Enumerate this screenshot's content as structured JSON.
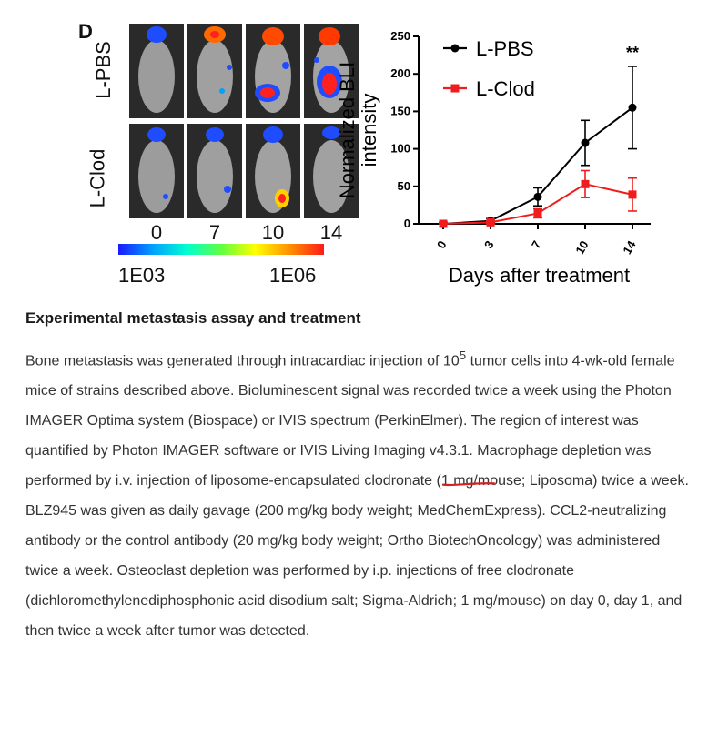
{
  "figure": {
    "panel_letter": "D",
    "row_labels": [
      "L-PBS",
      "L-Clod"
    ],
    "day_labels": [
      "0",
      "7",
      "10",
      "14"
    ],
    "colorbar": {
      "min_label": "1E03",
      "max_label": "1E06"
    }
  },
  "chart_data": {
    "type": "line",
    "x": [
      "0",
      "3",
      "7",
      "10",
      "14"
    ],
    "xlabel": "Days after treatment",
    "ylabel": "Normalized BLI intensity",
    "ylim": [
      0,
      250
    ],
    "yticks": [
      "0",
      "50",
      "100",
      "150",
      "200",
      "250"
    ],
    "grid": false,
    "legend_position": "top-left",
    "series": [
      {
        "name": "L-PBS",
        "color": "#000000",
        "marker": "circle",
        "values": [
          0,
          4,
          36,
          108,
          155
        ],
        "errors": [
          2,
          3,
          12,
          30,
          55
        ]
      },
      {
        "name": "L-Clod",
        "color": "#ee1c1c",
        "marker": "square",
        "values": [
          0,
          2,
          14,
          53,
          39
        ],
        "errors": [
          2,
          2,
          6,
          18,
          22
        ]
      }
    ],
    "annotation": {
      "text": "**",
      "x": "14"
    }
  },
  "text": {
    "heading": "Experimental metastasis assay and treatment",
    "p1": "Bone metastasis was generated through intracardiac injection of 10",
    "sup": "5",
    "p2": " tumor cells into 4-wk-old female mice of strains described above. Bioluminescent signal was recorded twice a week using the Photon IMAGER Optima system (Biospace) or IVIS spectrum (PerkinElmer). The region of interest was quantified by Photon IMAGER software or IVIS Living Imaging v4.3.1. Macrophage depletion was performed by i.v. injection of liposome-encapsulated clodronate (",
    "underlined": "1 mg/mouse; Liposoma",
    "p3": ") twice a week. BLZ945 was given as daily gavage (200 mg/kg body weight; MedChemExpress). CCL2-neutralizing antibody or the control antibody (20 mg/kg body weight; Ortho BiotechOncology) was administered twice a week. Osteoclast depletion was performed by i.p. injections of free clodronate (dichloromethylenediphosphonic acid disodium salt; Sigma-Aldrich; 1 mg/mouse) on day 0, day 1, and then twice a week after tumor was detected."
  },
  "colors": {
    "underline": "#d22222",
    "series_pbs": "#000000",
    "series_clod": "#ee1c1c"
  }
}
